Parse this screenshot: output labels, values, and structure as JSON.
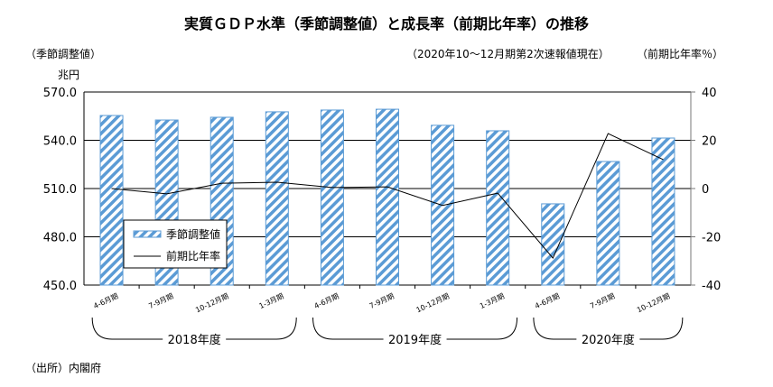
{
  "chart_data": {
    "type": "bar+line",
    "title": "実質ＧＤＰ水準（季節調整値）と成長率（前期比年率）の推移",
    "subtitle": "（2020年10～12月期第2次速報値現在）",
    "left_axis_label": "（季節調整値）",
    "left_axis_unit": "兆円",
    "right_axis_label": "（前期比年率％）",
    "source": "（出所）内閣府",
    "categories": [
      "4-6月期",
      "7-9月期",
      "10-12月期",
      "1-3月期",
      "4-6月期",
      "7-9月期",
      "10-12月期",
      "1-3月期",
      "4-6月期",
      "7-9月期",
      "10-12月期"
    ],
    "groups": [
      {
        "label": "2018年度",
        "start": 0,
        "end": 3
      },
      {
        "label": "2019年度",
        "start": 4,
        "end": 7
      },
      {
        "label": "2020年度",
        "start": 8,
        "end": 10
      }
    ],
    "left_ylim": [
      450,
      570
    ],
    "left_ticks": [
      "450.0",
      "480.0",
      "510.0",
      "540.0",
      "570.0"
    ],
    "right_ylim": [
      -40,
      40
    ],
    "right_ticks": [
      "-40",
      "-20",
      "0",
      "20",
      "40"
    ],
    "series": [
      {
        "name": "季節調整値",
        "type": "bar",
        "axis": "left",
        "color": "#5b9bd5",
        "values": [
          555.4,
          552.6,
          554.3,
          557.7,
          558.8,
          559.3,
          549.3,
          545.9,
          500.5,
          526.8,
          541.4
        ]
      },
      {
        "name": "前期比年率",
        "type": "line",
        "axis": "right",
        "color": "#000000",
        "values": [
          0.0,
          -2.2,
          2.2,
          2.6,
          0.4,
          0.7,
          -7.0,
          -1.9,
          -28.8,
          22.8,
          12.0
        ]
      }
    ],
    "legend": "inside-lower-left",
    "grid": true
  }
}
